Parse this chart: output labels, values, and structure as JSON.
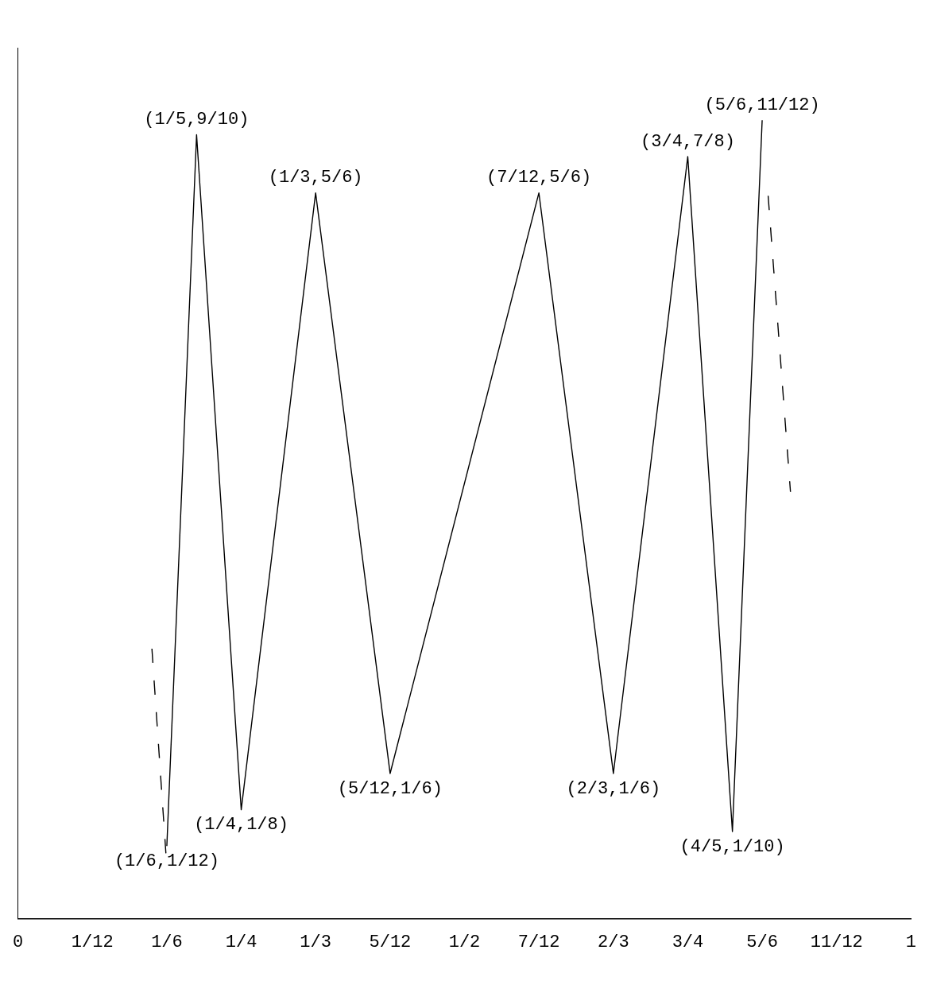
{
  "chart_data": {
    "type": "line",
    "xlim": [
      0,
      1
    ],
    "xticks": [
      {
        "value": 0,
        "label": "0"
      },
      {
        "value": 0.0833,
        "label": "1/12"
      },
      {
        "value": 0.1667,
        "label": "1/6"
      },
      {
        "value": 0.25,
        "label": "1/4"
      },
      {
        "value": 0.3333,
        "label": "1/3"
      },
      {
        "value": 0.4167,
        "label": "5/12"
      },
      {
        "value": 0.5,
        "label": "1/2"
      },
      {
        "value": 0.5833,
        "label": "7/12"
      },
      {
        "value": 0.6667,
        "label": "2/3"
      },
      {
        "value": 0.75,
        "label": "3/4"
      },
      {
        "value": 0.8333,
        "label": "5/6"
      },
      {
        "value": 0.9167,
        "label": "11/12"
      },
      {
        "value": 1,
        "label": "1"
      }
    ],
    "tick_labels": "x",
    "grid": false,
    "legend": false,
    "marker": "none",
    "series": [
      {
        "color": "#000000",
        "x": [
          0.1667,
          0.2,
          0.25,
          0.3333,
          0.4167,
          0.5833,
          0.6667,
          0.75,
          0.8,
          0.8333
        ],
        "values": [
          0.0833,
          0.9,
          0.125,
          0.8333,
          0.1667,
          0.8333,
          0.1667,
          0.875,
          0.1,
          0.9167
        ],
        "value_labels": [
          "(1/6,1/12)",
          "(1/5,9/10)",
          "(1/4,1/8)",
          "(1/3,5/6)",
          "(5/12,1/6)",
          "(7/12,5/6)",
          "(2/3,1/6)",
          "(3/4,7/8)",
          "(4/5,1/10)",
          "(5/6,11/12)"
        ]
      },
      {
        "color": "#000000",
        "line_style": "dashed",
        "x": [
          0.15,
          0.166
        ],
        "values": [
          0.31,
          0.07
        ]
      },
      {
        "color": "#000000",
        "line_style": "dashed",
        "x": [
          0.84,
          0.865
        ],
        "values": [
          0.83,
          0.49
        ]
      }
    ]
  }
}
